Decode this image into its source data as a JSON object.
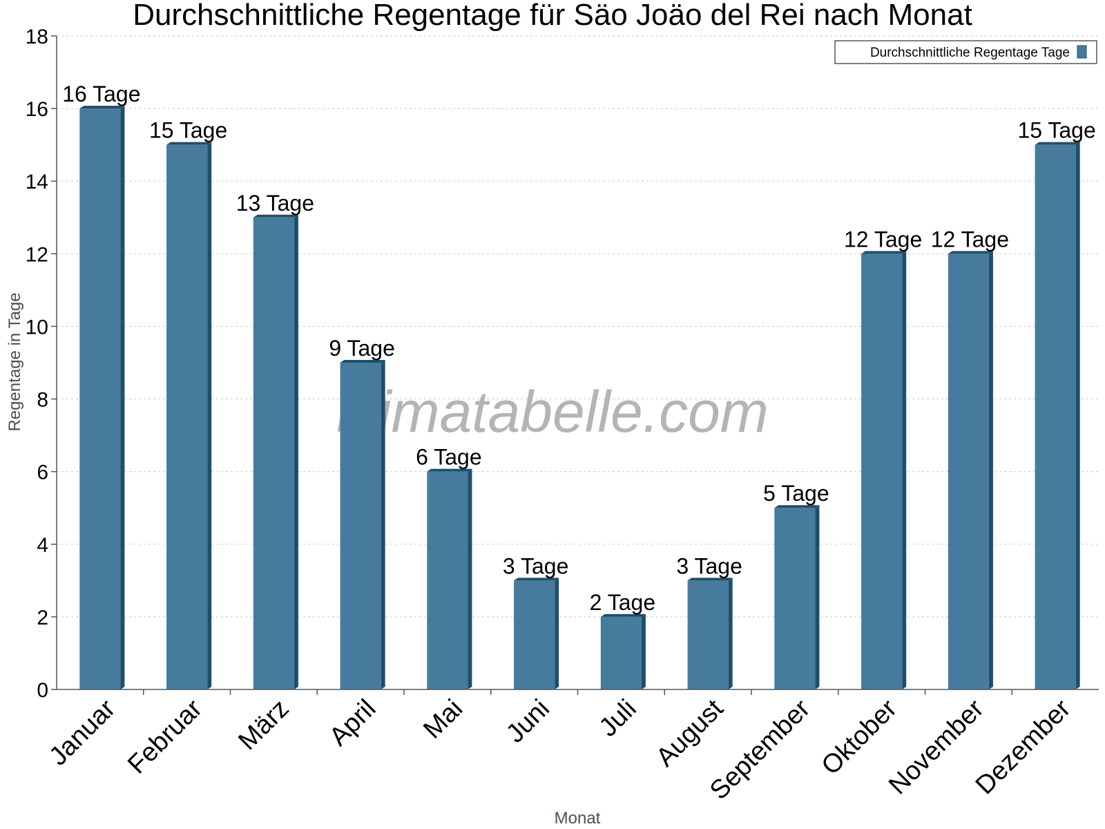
{
  "chart_data": {
    "type": "bar",
    "title": "Durchschnittliche Regentage für Säo Joäo del Rei nach Monat",
    "xlabel": "Monat",
    "ylabel": "Regentage in Tage",
    "categories": [
      "Januar",
      "Februar",
      "März",
      "April",
      "Mai",
      "Juni",
      "Juli",
      "August",
      "September",
      "Oktober",
      "November",
      "Dezember"
    ],
    "series": [
      {
        "name": "Durchschnittliche Regentage Tage",
        "values": [
          16,
          15,
          13,
          9,
          6,
          3,
          2,
          3,
          5,
          12,
          12,
          15
        ],
        "data_labels": [
          "16 Tage",
          "15 Tage",
          "13 Tage",
          "9 Tage",
          "6 Tage",
          "3 Tage",
          "2 Tage",
          "3 Tage",
          "5 Tage",
          "12 Tage",
          "12 Tage",
          "15 Tage"
        ],
        "color": "#467b9d",
        "side_color": "#1d4f6d"
      }
    ],
    "ylim": [
      0,
      18
    ],
    "y_ticks": [
      0,
      2,
      4,
      6,
      8,
      10,
      12,
      14,
      16,
      18
    ],
    "grid": true,
    "legend_position": "top-right",
    "watermark": "klimatabelle.com"
  }
}
